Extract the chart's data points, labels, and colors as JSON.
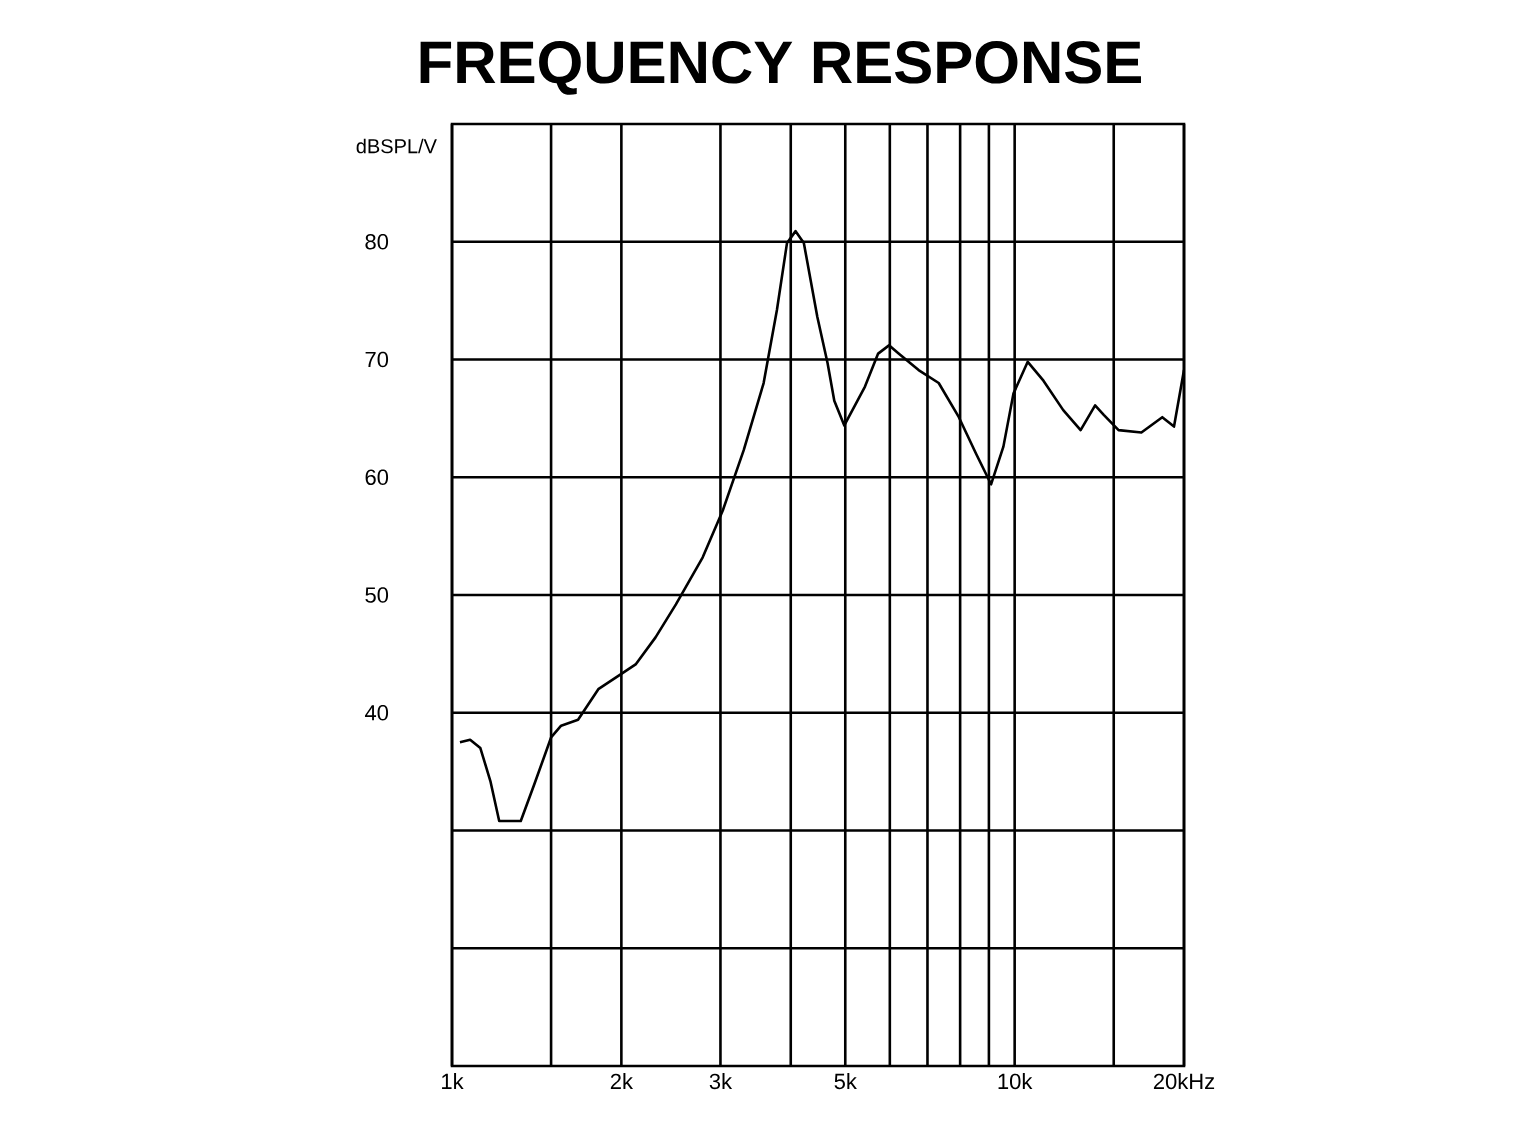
{
  "chart_data": {
    "type": "line",
    "title": "FREQUENCY RESPONSE",
    "ylabel": "dBSPL/V",
    "x": [
      1.033,
      1.077,
      1.123,
      1.17,
      1.213,
      1.325,
      1.4,
      1.5,
      1.563,
      1.675,
      1.82,
      2.0,
      2.12,
      2.3,
      2.5,
      2.79,
      3.03,
      3.3,
      3.58,
      3.78,
      3.94,
      4.08,
      4.22,
      4.46,
      4.65,
      4.78,
      4.98,
      5.42,
      5.72,
      5.98,
      6.22,
      6.75,
      7.33,
      7.96,
      8.54,
      9.08,
      9.55,
      9.95,
      10.55,
      11.25,
      12.2,
      13.1,
      13.9,
      14.4,
      15.3,
      16.8,
      18.3,
      19.2,
      20.0
    ],
    "series": [
      {
        "color": "#000000",
        "values": [
          37.5,
          37.7,
          37.0,
          34.2,
          30.8,
          30.8,
          33.9,
          37.9,
          38.9,
          39.4,
          42.0,
          43.3,
          44.1,
          46.4,
          49.2,
          53.2,
          57.2,
          62.3,
          68.0,
          74.2,
          79.9,
          80.9,
          79.9,
          73.6,
          69.7,
          66.5,
          64.4,
          67.7,
          70.5,
          71.2,
          70.5,
          69.1,
          68.0,
          65.1,
          62.0,
          59.4,
          62.6,
          67.1,
          69.8,
          68.2,
          65.7,
          64.0,
          66.1,
          65.3,
          64.0,
          63.8,
          65.1,
          64.3,
          69.1
        ]
      }
    ],
    "log": "x",
    "grid": true,
    "marker": "none",
    "line_style": "solid",
    "xlim": [
      1,
      20
    ],
    "xticks": [
      {
        "value": 1,
        "label": "1k"
      },
      {
        "value": 1.5,
        "label": null
      },
      {
        "value": 2,
        "label": "2k"
      },
      {
        "value": 3,
        "label": "3k"
      },
      {
        "value": 4,
        "label": null
      },
      {
        "value": 5,
        "label": "5k"
      },
      {
        "value": 6,
        "label": null
      },
      {
        "value": 7,
        "label": null
      },
      {
        "value": 8,
        "label": null
      },
      {
        "value": 9,
        "label": null
      },
      {
        "value": 10,
        "label": "10k"
      },
      {
        "value": 15,
        "label": null
      },
      {
        "value": 20,
        "label": "20kHz"
      }
    ],
    "ylim": [
      10,
      90
    ],
    "yticks": [
      {
        "value": 20,
        "label": null
      },
      {
        "value": 30,
        "label": null
      },
      40,
      50,
      60,
      70,
      80
    ]
  }
}
